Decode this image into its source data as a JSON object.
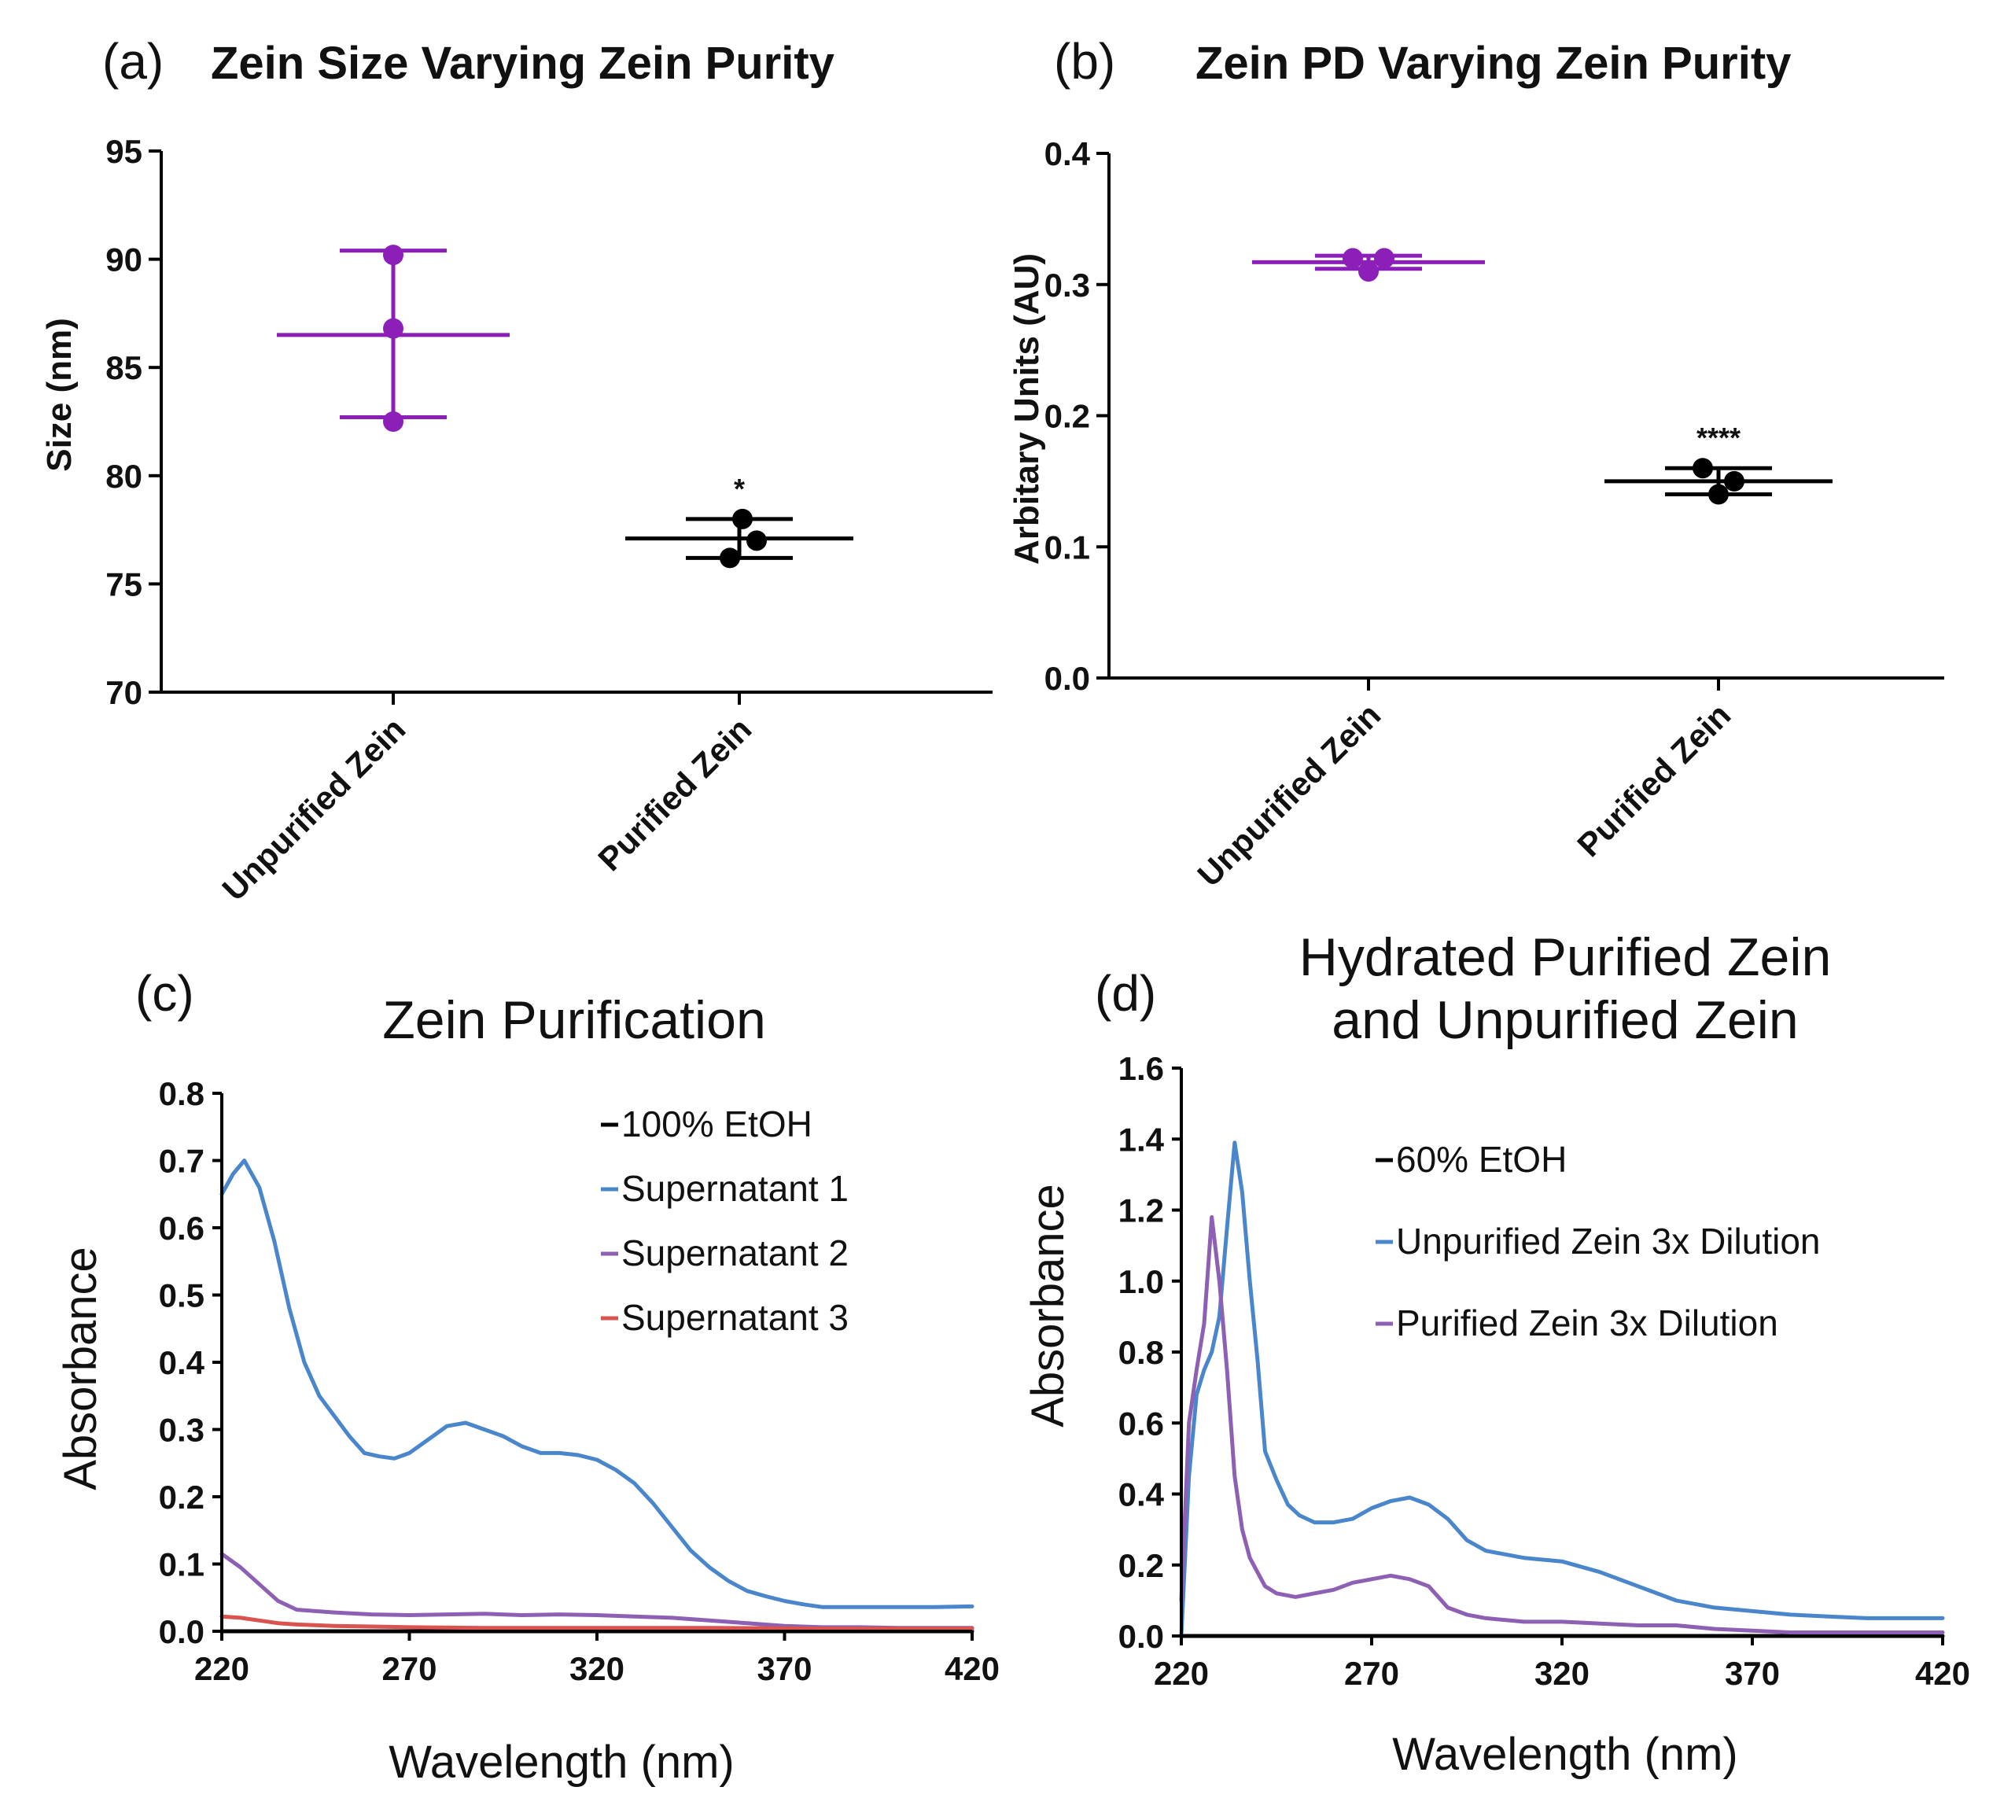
{
  "panel_letters": {
    "a": "(a)",
    "b": "(b)",
    "c": "(c)",
    "d": "(d)"
  },
  "colors": {
    "purple": "#8b1fb8",
    "black": "#000000",
    "blue": "#4a86cc",
    "violet": "#8e60b4",
    "red": "#d9534f"
  },
  "chart_data": [
    {
      "id": "a",
      "type": "scatter",
      "title": "Zein Size Varying Zein Purity",
      "xlabel": "",
      "ylabel": "Size (nm)",
      "categories": [
        "Unpurified Zein",
        "Purified Zein"
      ],
      "ylim": [
        70,
        95
      ],
      "yticks": [
        70,
        75,
        80,
        85,
        90,
        95
      ],
      "groups": [
        {
          "category": "Unpurified Zein",
          "points": [
            90.2,
            86.8,
            82.5
          ],
          "mean": 86.5,
          "err_low": 82.7,
          "err_high": 90.4,
          "color": "#8b1fb8",
          "significance": ""
        },
        {
          "category": "Purified Zein",
          "points": [
            78.0,
            77.0,
            76.2
          ],
          "mean": 77.1,
          "err_low": 76.2,
          "err_high": 78.0,
          "color": "#000000",
          "significance": "*"
        }
      ]
    },
    {
      "id": "b",
      "type": "scatter",
      "title": "Zein PD Varying Zein Purity",
      "xlabel": "",
      "ylabel": "Arbitary Units (AU)",
      "categories": [
        "Unpurified Zein",
        "Purified Zein"
      ],
      "ylim": [
        0.0,
        0.4
      ],
      "yticks": [
        0.0,
        0.1,
        0.2,
        0.3,
        0.4
      ],
      "tick_format": 1,
      "groups": [
        {
          "category": "Unpurified Zein",
          "points": [
            0.32,
            0.31,
            0.32
          ],
          "mean": 0.317,
          "err_low": 0.312,
          "err_high": 0.322,
          "color": "#8b1fb8",
          "significance": ""
        },
        {
          "category": "Purified Zein",
          "points": [
            0.16,
            0.14,
            0.15
          ],
          "mean": 0.15,
          "err_low": 0.14,
          "err_high": 0.16,
          "color": "#000000",
          "significance": "****"
        }
      ]
    },
    {
      "id": "c",
      "type": "line",
      "title": "Zein Purification",
      "xlabel": "Wavelength (nm)",
      "ylabel": "Absorbance",
      "xlim": [
        220,
        420
      ],
      "xticks": [
        220,
        270,
        320,
        370,
        420
      ],
      "ylim": [
        0.0,
        0.8
      ],
      "yticks": [
        0.0,
        0.1,
        0.2,
        0.3,
        0.4,
        0.5,
        0.6,
        0.7,
        0.8
      ],
      "tick_format": 1,
      "legend_position": "top-right",
      "series": [
        {
          "name": "100% EtOH",
          "color": "#000000",
          "x": [
            220,
            420
          ],
          "y": [
            0.0,
            0.0
          ]
        },
        {
          "name": "Supernatant 1",
          "color": "#4a86cc",
          "x": [
            220,
            223,
            226,
            230,
            234,
            238,
            242,
            246,
            250,
            254,
            258,
            262,
            266,
            270,
            275,
            280,
            285,
            290,
            295,
            300,
            305,
            310,
            315,
            320,
            325,
            330,
            335,
            340,
            345,
            350,
            355,
            360,
            365,
            370,
            375,
            380,
            390,
            400,
            410,
            420
          ],
          "y": [
            0.65,
            0.68,
            0.7,
            0.66,
            0.58,
            0.48,
            0.4,
            0.35,
            0.32,
            0.29,
            0.265,
            0.26,
            0.257,
            0.265,
            0.285,
            0.305,
            0.31,
            0.3,
            0.29,
            0.275,
            0.265,
            0.265,
            0.262,
            0.255,
            0.24,
            0.22,
            0.19,
            0.155,
            0.12,
            0.095,
            0.075,
            0.06,
            0.052,
            0.045,
            0.04,
            0.036,
            0.036,
            0.036,
            0.036,
            0.037
          ]
        },
        {
          "name": "Supernatant 2",
          "color": "#8e60b4",
          "x": [
            220,
            225,
            230,
            235,
            240,
            250,
            260,
            270,
            280,
            290,
            300,
            310,
            320,
            330,
            340,
            350,
            360,
            370,
            380,
            390,
            400,
            410,
            420
          ],
          "y": [
            0.115,
            0.095,
            0.07,
            0.045,
            0.032,
            0.028,
            0.025,
            0.024,
            0.025,
            0.026,
            0.024,
            0.025,
            0.024,
            0.022,
            0.02,
            0.016,
            0.012,
            0.008,
            0.006,
            0.006,
            0.005,
            0.005,
            0.005
          ]
        },
        {
          "name": "Supernatant 3",
          "color": "#d9534f",
          "x": [
            220,
            225,
            230,
            235,
            240,
            250,
            260,
            270,
            290,
            320,
            350,
            380,
            420
          ],
          "y": [
            0.022,
            0.02,
            0.016,
            0.012,
            0.01,
            0.008,
            0.007,
            0.006,
            0.005,
            0.005,
            0.005,
            0.004,
            0.004
          ]
        }
      ]
    },
    {
      "id": "d",
      "type": "line",
      "title": [
        "Hydrated Purified Zein",
        "and Unpurified Zein"
      ],
      "xlabel": "Wavelength (nm)",
      "ylabel": "Absorbance",
      "xlim": [
        220,
        420
      ],
      "xticks": [
        220,
        270,
        320,
        370,
        420
      ],
      "ylim": [
        0.0,
        1.6
      ],
      "yticks": [
        0.0,
        0.2,
        0.4,
        0.6,
        0.8,
        1.0,
        1.2,
        1.4,
        1.6
      ],
      "tick_format": 1,
      "legend_position": "top-right",
      "series": [
        {
          "name": "60% EtOH",
          "color": "#000000",
          "x": [
            220,
            420
          ],
          "y": [
            0.0,
            0.0
          ]
        },
        {
          "name": "Unpurified Zein 3x Dilution",
          "color": "#4a86cc",
          "x": [
            220,
            222,
            224,
            226,
            228,
            230,
            232,
            234,
            236,
            238,
            240,
            242,
            245,
            248,
            251,
            255,
            260,
            265,
            270,
            275,
            280,
            285,
            290,
            295,
            300,
            310,
            320,
            330,
            340,
            350,
            360,
            370,
            380,
            390,
            400,
            410,
            420
          ],
          "y": [
            0.0,
            0.45,
            0.68,
            0.75,
            0.8,
            0.9,
            1.15,
            1.39,
            1.25,
            1.0,
            0.78,
            0.52,
            0.44,
            0.37,
            0.34,
            0.32,
            0.32,
            0.33,
            0.36,
            0.38,
            0.39,
            0.37,
            0.33,
            0.27,
            0.24,
            0.22,
            0.21,
            0.18,
            0.14,
            0.1,
            0.08,
            0.07,
            0.06,
            0.055,
            0.05,
            0.05,
            0.05
          ]
        },
        {
          "name": "Purified Zein 3x Dilution",
          "color": "#8e60b4",
          "x": [
            220,
            222,
            224,
            226,
            228,
            230,
            232,
            234,
            236,
            238,
            240,
            242,
            245,
            250,
            255,
            260,
            265,
            270,
            275,
            280,
            285,
            290,
            295,
            300,
            310,
            320,
            330,
            340,
            350,
            360,
            370,
            380,
            390,
            400,
            410,
            420
          ],
          "y": [
            0.1,
            0.6,
            0.75,
            0.88,
            1.18,
            1.0,
            0.75,
            0.45,
            0.3,
            0.22,
            0.18,
            0.14,
            0.12,
            0.11,
            0.12,
            0.13,
            0.15,
            0.16,
            0.17,
            0.16,
            0.14,
            0.08,
            0.06,
            0.05,
            0.04,
            0.04,
            0.035,
            0.03,
            0.03,
            0.02,
            0.015,
            0.01,
            0.01,
            0.01,
            0.01,
            0.01
          ]
        }
      ]
    }
  ]
}
